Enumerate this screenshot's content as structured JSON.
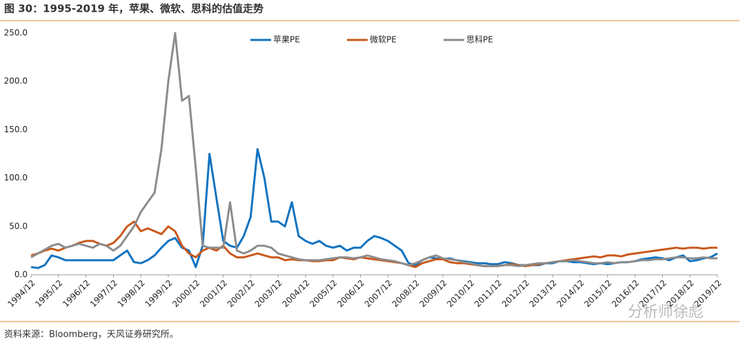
{
  "chart_data": {
    "type": "line",
    "title": "图 30：1995-2019 年，苹果、微软、思科的估值走势",
    "source": "资料来源：Bloomberg，天风证券研究所。",
    "watermark": "分析师徐彪",
    "legend": "top",
    "categories": [
      "1994/12",
      null,
      null,
      null,
      "1995/12",
      null,
      null,
      null,
      "1996/12",
      null,
      null,
      null,
      "1997/12",
      null,
      null,
      null,
      "1998/12",
      null,
      null,
      null,
      "1999/12",
      null,
      null,
      null,
      "2000/12",
      null,
      null,
      null,
      "2001/12",
      null,
      null,
      null,
      "2002/12",
      null,
      null,
      null,
      "2003/12",
      null,
      null,
      null,
      "2004/12",
      null,
      null,
      null,
      "2005/12",
      null,
      null,
      null,
      "2006/12",
      null,
      null,
      null,
      "2007/12",
      null,
      null,
      null,
      "2008/12",
      null,
      null,
      null,
      "2009/12",
      null,
      null,
      null,
      "2010/12",
      null,
      null,
      null,
      "2011/12",
      null,
      null,
      null,
      "2012/12",
      null,
      null,
      null,
      "2013/12",
      null,
      null,
      null,
      "2014/12",
      null,
      null,
      null,
      "2015/12",
      null,
      null,
      null,
      "2016/12",
      null,
      null,
      null,
      "2017/12",
      null,
      null,
      null,
      "2018/12",
      null,
      null,
      null,
      "2019/12"
    ],
    "series": [
      {
        "name": "苹果PE",
        "color": "#1173c1",
        "values": [
          8,
          7,
          10,
          20,
          18,
          15,
          15,
          15,
          15,
          15,
          15,
          15,
          15,
          20,
          25,
          13,
          12,
          15,
          20,
          28,
          35,
          38,
          28,
          25,
          8,
          30,
          125,
          80,
          35,
          30,
          28,
          40,
          60,
          130,
          100,
          55,
          55,
          50,
          75,
          40,
          35,
          32,
          35,
          30,
          28,
          30,
          25,
          28,
          28,
          35,
          40,
          38,
          35,
          30,
          25,
          12,
          10,
          15,
          18,
          17,
          16,
          17,
          15,
          14,
          13,
          12,
          12,
          11,
          11,
          13,
          12,
          10,
          10,
          10,
          10,
          12,
          12,
          14,
          14,
          13,
          13,
          12,
          11,
          12,
          11,
          12,
          13,
          13,
          14,
          16,
          17,
          18,
          17,
          15,
          18,
          20,
          14,
          15,
          17,
          18,
          22
        ]
      },
      {
        "name": "微软PE",
        "color": "#c9581a",
        "values": [
          20,
          22,
          25,
          27,
          25,
          28,
          30,
          33,
          35,
          35,
          32,
          30,
          33,
          40,
          50,
          55,
          45,
          48,
          45,
          42,
          50,
          45,
          30,
          22,
          18,
          25,
          28,
          25,
          30,
          22,
          18,
          18,
          20,
          22,
          20,
          18,
          18,
          15,
          16,
          15,
          15,
          14,
          14,
          15,
          15,
          18,
          17,
          16,
          18,
          17,
          16,
          15,
          14,
          13,
          12,
          10,
          8,
          12,
          14,
          16,
          16,
          13,
          12,
          12,
          11,
          10,
          9,
          9,
          9,
          10,
          11,
          10,
          9,
          10,
          11,
          12,
          13,
          14,
          15,
          16,
          17,
          18,
          19,
          18,
          20,
          20,
          19,
          21,
          22,
          23,
          24,
          25,
          26,
          27,
          28,
          27,
          28,
          28,
          27,
          28,
          28
        ]
      },
      {
        "name": "思科PE",
        "color": "#8c8c8c",
        "values": [
          18,
          22,
          26,
          30,
          32,
          28,
          30,
          32,
          30,
          28,
          32,
          30,
          25,
          30,
          40,
          50,
          65,
          75,
          85,
          130,
          200,
          250,
          180,
          185,
          110,
          30,
          28,
          28,
          28,
          75,
          25,
          22,
          25,
          30,
          30,
          28,
          22,
          20,
          18,
          16,
          15,
          15,
          15,
          16,
          17,
          18,
          18,
          17,
          18,
          20,
          18,
          16,
          15,
          14,
          12,
          10,
          12,
          15,
          18,
          20,
          17,
          16,
          15,
          13,
          12,
          10,
          9,
          9,
          9,
          10,
          10,
          9,
          10,
          11,
          12,
          12,
          13,
          14,
          14,
          15,
          14,
          13,
          12,
          12,
          13,
          12,
          13,
          13,
          14,
          15,
          15,
          16,
          16,
          17,
          18,
          18,
          17,
          17,
          18,
          17,
          17
        ]
      }
    ],
    "ylim": [
      0,
      250
    ],
    "yticks": [
      {
        "value": 0,
        "label": "0.0"
      },
      {
        "value": 50,
        "label": "50.0"
      },
      {
        "value": 100,
        "label": "100.0"
      },
      {
        "value": 150,
        "label": "150.0"
      },
      {
        "value": 200,
        "label": "200.0"
      },
      {
        "value": 250,
        "label": "250.0"
      }
    ]
  }
}
